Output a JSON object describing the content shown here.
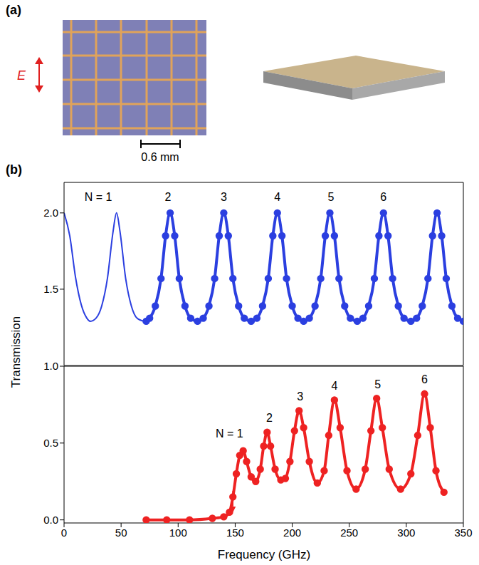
{
  "panel_a": {
    "label": "(a)",
    "field": "E",
    "scale_bar": "0.6 mm"
  },
  "panel_b": {
    "label": "(b)"
  },
  "chart_data": [
    {
      "type": "line",
      "xlim": [
        0,
        350
      ],
      "xticks": [
        0,
        50,
        100,
        150,
        200,
        250,
        300,
        350
      ],
      "ylim": [
        1.0,
        2.2
      ],
      "yticks": [
        1.5,
        {
          "value": 2.0,
          "label": "2.0"
        }
      ],
      "tick_labels": "y",
      "series": [
        {
          "type": "line",
          "color": "#2b3fe0",
          "x": [
            0,
            5,
            10,
            15,
            20,
            23,
            28,
            33,
            38,
            43,
            46,
            49,
            54,
            59,
            64,
            70
          ],
          "values": [
            2.0,
            1.85,
            1.58,
            1.4,
            1.31,
            1.29,
            1.31,
            1.39,
            1.57,
            1.88,
            2.0,
            1.88,
            1.57,
            1.39,
            1.31,
            1.29
          ]
        },
        {
          "type": "line",
          "marker": "circle",
          "color": "#2b3fe0",
          "x": [
            72,
            75,
            80,
            85,
            89,
            93,
            97,
            101,
            106,
            111,
            117,
            122,
            127,
            132,
            136,
            140,
            144,
            148,
            153,
            158,
            164,
            169,
            174,
            179,
            183,
            187,
            191,
            195,
            200,
            205,
            210,
            215,
            220,
            225,
            229,
            233,
            237,
            241,
            246,
            251,
            257,
            262,
            267,
            272,
            276,
            280,
            284,
            288,
            293,
            298,
            304,
            309,
            314,
            319,
            323,
            327,
            331,
            335,
            340,
            345,
            350
          ],
          "values": [
            1.29,
            1.31,
            1.39,
            1.57,
            1.85,
            2.0,
            1.85,
            1.57,
            1.39,
            1.31,
            1.29,
            1.31,
            1.39,
            1.57,
            1.85,
            2.0,
            1.85,
            1.57,
            1.39,
            1.31,
            1.29,
            1.31,
            1.39,
            1.57,
            1.85,
            2.0,
            1.85,
            1.57,
            1.39,
            1.31,
            1.29,
            1.31,
            1.39,
            1.57,
            1.85,
            2.0,
            1.85,
            1.57,
            1.39,
            1.31,
            1.29,
            1.31,
            1.39,
            1.57,
            1.85,
            2.0,
            1.85,
            1.57,
            1.39,
            1.31,
            1.29,
            1.31,
            1.39,
            1.57,
            1.85,
            2.0,
            1.85,
            1.57,
            1.39,
            1.31,
            1.29
          ]
        }
      ],
      "annotations": [
        {
          "text": "N = 1",
          "x": 30,
          "y": 2.1
        },
        {
          "text": "2",
          "x": 91,
          "y": 2.1
        },
        {
          "text": "3",
          "x": 140,
          "y": 2.1
        },
        {
          "text": "4",
          "x": 187,
          "y": 2.1
        },
        {
          "text": "5",
          "x": 234,
          "y": 2.1
        },
        {
          "text": "6",
          "x": 280,
          "y": 2.1
        }
      ]
    },
    {
      "type": "line",
      "xlabel": "Frequency (GHz)",
      "ylabel": "Transmission",
      "xlim": [
        0,
        350
      ],
      "xticks": [
        0,
        50,
        100,
        150,
        200,
        250,
        300,
        350
      ],
      "ylim": [
        -0.02,
        1.0
      ],
      "yticks": [
        {
          "value": 0.0,
          "label": "0.0"
        },
        0.5,
        {
          "value": 1.0,
          "label": "1.0"
        }
      ],
      "series": [
        {
          "type": "line",
          "marker": "circle",
          "color": "#ee2222",
          "x": [
            72,
            90,
            110,
            130,
            140,
            145,
            148,
            151,
            154,
            157,
            160,
            164,
            168,
            172,
            175,
            178,
            181,
            185,
            190,
            194,
            198,
            202,
            206,
            210,
            215,
            222,
            228,
            232,
            237,
            242,
            248,
            256,
            264,
            269,
            274,
            279,
            285,
            295,
            304,
            310,
            316,
            321,
            326,
            333
          ],
          "values": [
            0.0,
            0.0,
            0.0,
            0.01,
            0.02,
            0.05,
            0.15,
            0.3,
            0.42,
            0.45,
            0.38,
            0.28,
            0.25,
            0.33,
            0.48,
            0.57,
            0.48,
            0.33,
            0.26,
            0.27,
            0.38,
            0.58,
            0.71,
            0.6,
            0.38,
            0.24,
            0.32,
            0.55,
            0.78,
            0.6,
            0.32,
            0.2,
            0.33,
            0.58,
            0.79,
            0.6,
            0.33,
            0.2,
            0.3,
            0.55,
            0.82,
            0.6,
            0.32,
            0.18
          ]
        }
      ],
      "annotations": [
        {
          "text": "N = 1",
          "x": 145,
          "y": 0.56
        },
        {
          "text": "2",
          "x": 180,
          "y": 0.66
        },
        {
          "text": "3",
          "x": 207,
          "y": 0.8
        },
        {
          "text": "4",
          "x": 237,
          "y": 0.87
        },
        {
          "text": "5",
          "x": 275,
          "y": 0.88
        },
        {
          "text": "6",
          "x": 316,
          "y": 0.91
        }
      ],
      "arrow": {
        "x": 148,
        "y": 0.05,
        "color": "#ee2222"
      }
    }
  ]
}
